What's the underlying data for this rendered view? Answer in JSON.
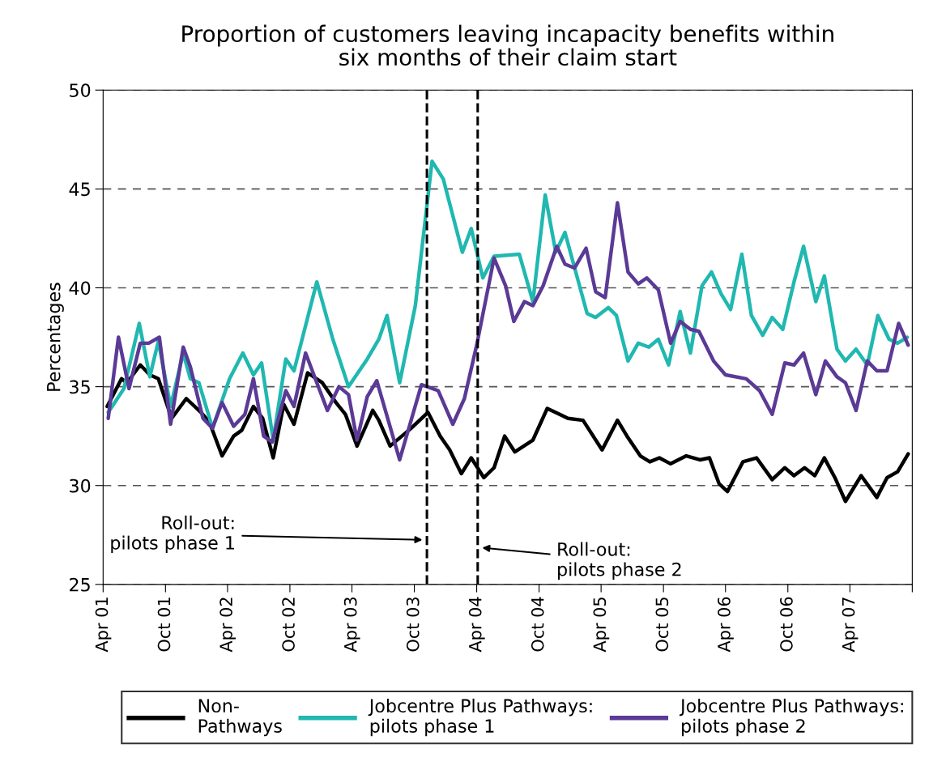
{
  "chart_data": {
    "type": "line",
    "title": "Proportion of customers leaving incapacity benefits within\nsix months of their claim start",
    "ylabel": "Percentages",
    "xlim": [
      "2001-04",
      "2007-10"
    ],
    "ylim": [
      25,
      50
    ],
    "xticks": [
      {
        "value": "2001-04",
        "label": "Apr 01"
      },
      {
        "value": "2001-10",
        "label": "Oct 01"
      },
      {
        "value": "2002-04",
        "label": "Apr 02"
      },
      {
        "value": "2002-10",
        "label": "Oct 02"
      },
      {
        "value": "2003-04",
        "label": "Apr 03"
      },
      {
        "value": "2003-10",
        "label": "Oct 03"
      },
      {
        "value": "2004-04",
        "label": "Apr 04"
      },
      {
        "value": "2004-10",
        "label": "Oct 04"
      },
      {
        "value": "2005-04",
        "label": "Apr 05"
      },
      {
        "value": "2005-10",
        "label": "Oct 05"
      },
      {
        "value": "2006-04",
        "label": "Apr 06"
      },
      {
        "value": "2006-10",
        "label": "Oct 06"
      },
      {
        "value": "2007-04",
        "label": "Apr 07"
      },
      {
        "value": "2007-10",
        "label": null
      }
    ],
    "yticks": [
      25,
      30,
      35,
      40,
      45,
      50
    ],
    "grid": "y",
    "legend": "bottom",
    "marker": "none",
    "line_style": "solid",
    "ref_lines": [
      {
        "axis": "x",
        "value": "2003-11-07",
        "label": "Roll-out:\npilots phase 1",
        "color": "#000000",
        "line_style": "dashed"
      },
      {
        "axis": "x",
        "value": "2004-04-04",
        "label": "Roll-out:\npilots phase 2",
        "color": "#000000",
        "line_style": "dashed"
      }
    ],
    "series": [
      {
        "name": "Non-\nPathways",
        "color": "#000000",
        "x": [
          "2001-04-13",
          "2001-05-25",
          "2001-06-10",
          "2001-07-19",
          "2001-08-16",
          "2001-09-10",
          "2001-10-19",
          "2001-12-01",
          "2002-01-13",
          "2002-02-07",
          "2002-03-16",
          "2002-04-19",
          "2002-05-13",
          "2002-06-16",
          "2002-07-13",
          "2002-08-13",
          "2002-09-13",
          "2002-10-13",
          "2002-11-22",
          "2003-01-04",
          "2003-02-13",
          "2003-03-13",
          "2003-04-16",
          "2003-06-01",
          "2003-06-19",
          "2003-07-22",
          "2003-09-22",
          "2003-11-10",
          "2003-12-16",
          "2004-01-13",
          "2004-02-16",
          "2004-03-16",
          "2004-04-22",
          "2004-05-22",
          "2004-06-22",
          "2004-07-22",
          "2004-09-13",
          "2004-10-25",
          "2004-12-25",
          "2005-02-07",
          "2005-04-04",
          "2005-05-19",
          "2005-06-16",
          "2005-07-25",
          "2005-08-22",
          "2005-09-19",
          "2005-10-22",
          "2005-12-07",
          "2006-01-16",
          "2006-02-13",
          "2006-03-13",
          "2006-04-07",
          "2006-05-22",
          "2006-07-01",
          "2006-08-16",
          "2006-09-22",
          "2006-10-19",
          "2006-11-19",
          "2006-12-19",
          "2007-01-16",
          "2007-02-16",
          "2007-03-19",
          "2007-05-04",
          "2007-06-19",
          "2007-07-19",
          "2007-08-19",
          "2007-09-19"
        ],
        "values": [
          34.0,
          35.4,
          35.2,
          36.1,
          35.6,
          35.4,
          33.4,
          34.4,
          33.7,
          33.2,
          31.5,
          32.5,
          32.8,
          34.0,
          33.4,
          31.4,
          34.1,
          33.1,
          35.7,
          35.2,
          34.2,
          33.6,
          32.0,
          33.8,
          33.3,
          32.0,
          32.9,
          33.7,
          32.5,
          31.8,
          30.6,
          31.4,
          30.4,
          30.9,
          32.5,
          31.7,
          32.3,
          33.9,
          33.4,
          33.3,
          31.8,
          33.3,
          32.5,
          31.5,
          31.2,
          31.4,
          31.1,
          31.5,
          31.3,
          31.4,
          30.1,
          29.7,
          31.2,
          31.4,
          30.3,
          30.9,
          30.5,
          30.9,
          30.5,
          31.4,
          30.4,
          29.2,
          30.5,
          29.4,
          30.4,
          30.7,
          31.6
        ]
      },
      {
        "name": "Jobcentre Plus Pathways:\npilots phase 1",
        "color": "#20b8b0",
        "x": [
          "2001-04-16",
          "2001-06-01",
          "2001-07-16",
          "2001-08-16",
          "2001-09-10",
          "2001-10-16",
          "2001-11-22",
          "2001-12-13",
          "2002-01-07",
          "2002-02-16",
          "2002-04-07",
          "2002-05-16",
          "2002-06-16",
          "2002-07-10",
          "2002-08-13",
          "2002-09-19",
          "2002-10-13",
          "2002-12-19",
          "2003-02-04",
          "2003-03-22",
          "2003-05-16",
          "2003-06-19",
          "2003-07-13",
          "2003-08-19",
          "2003-10-04",
          "2003-11-22",
          "2003-12-25",
          "2004-02-19",
          "2004-03-16",
          "2004-04-19",
          "2004-05-22",
          "2004-08-04",
          "2004-09-13",
          "2004-10-19",
          "2004-11-19",
          "2004-12-16",
          "2005-02-19",
          "2005-03-16",
          "2005-04-22",
          "2005-05-16",
          "2005-06-19",
          "2005-07-19",
          "2005-08-19",
          "2005-09-16",
          "2005-10-16",
          "2005-11-19",
          "2005-12-19",
          "2006-01-22",
          "2006-02-19",
          "2006-03-19",
          "2006-04-16",
          "2006-05-19",
          "2006-06-16",
          "2006-07-19",
          "2006-08-16",
          "2006-09-16",
          "2006-10-19",
          "2006-11-16",
          "2006-12-22",
          "2007-01-16",
          "2007-02-22",
          "2007-03-19",
          "2007-04-19",
          "2007-05-22",
          "2007-06-22",
          "2007-07-25",
          "2007-08-19",
          "2007-09-16"
        ],
        "values": [
          33.7,
          34.9,
          38.2,
          35.5,
          37.3,
          34.0,
          36.7,
          35.4,
          35.2,
          32.9,
          35.4,
          36.7,
          35.6,
          36.2,
          32.3,
          36.4,
          35.8,
          40.3,
          37.4,
          35.0,
          36.4,
          37.4,
          38.6,
          35.2,
          39.1,
          46.4,
          45.5,
          41.8,
          43.0,
          40.5,
          41.6,
          41.7,
          39.3,
          44.7,
          41.8,
          42.8,
          38.7,
          38.5,
          39.0,
          38.6,
          36.3,
          37.2,
          37.0,
          37.4,
          36.1,
          38.8,
          36.7,
          40.1,
          40.8,
          39.7,
          38.9,
          41.7,
          38.6,
          37.6,
          38.5,
          37.9,
          40.3,
          42.1,
          39.3,
          40.6,
          36.9,
          36.3,
          36.9,
          36.1,
          38.6,
          37.4,
          37.2,
          37.5
        ]
      },
      {
        "name": "Jobcentre Plus Pathways:\npilots phase 2",
        "color": "#5b3a96",
        "x": [
          "2001-04-16",
          "2001-05-16",
          "2001-06-16",
          "2001-07-19",
          "2001-08-13",
          "2001-09-13",
          "2001-10-16",
          "2001-11-22",
          "2001-12-13",
          "2002-01-19",
          "2002-02-16",
          "2002-03-16",
          "2002-04-19",
          "2002-05-22",
          "2002-06-16",
          "2002-07-16",
          "2002-08-10",
          "2002-09-19",
          "2002-10-13",
          "2002-11-16",
          "2002-12-19",
          "2003-01-19",
          "2003-02-22",
          "2003-03-22",
          "2003-04-16",
          "2003-05-16",
          "2003-06-13",
          "2003-08-19",
          "2003-10-22",
          "2003-12-10",
          "2004-01-22",
          "2004-02-25",
          "2004-04-01",
          "2004-05-22",
          "2004-06-25",
          "2004-07-19",
          "2004-08-19",
          "2004-09-13",
          "2004-10-13",
          "2004-11-22",
          "2004-12-16",
          "2005-01-13",
          "2005-02-16",
          "2005-03-16",
          "2005-04-13",
          "2005-05-19",
          "2005-06-19",
          "2005-07-19",
          "2005-08-13",
          "2005-09-16",
          "2005-10-22",
          "2005-11-19",
          "2005-12-19",
          "2006-01-13",
          "2006-02-25",
          "2006-04-01",
          "2006-06-01",
          "2006-07-10",
          "2006-08-16",
          "2006-09-22",
          "2006-10-19",
          "2006-11-16",
          "2006-12-22",
          "2007-01-19",
          "2007-02-22",
          "2007-03-19",
          "2007-04-19",
          "2007-05-22",
          "2007-06-19",
          "2007-07-19",
          "2007-08-22",
          "2007-09-19"
        ],
        "values": [
          33.4,
          37.5,
          34.9,
          37.2,
          37.2,
          37.5,
          33.1,
          37.0,
          36.0,
          33.4,
          32.9,
          34.2,
          33.0,
          33.6,
          35.4,
          32.5,
          32.2,
          34.8,
          34.0,
          36.7,
          35.2,
          33.8,
          35.0,
          34.6,
          32.3,
          34.5,
          35.3,
          31.3,
          35.1,
          34.8,
          33.1,
          34.4,
          37.1,
          41.5,
          40.1,
          38.3,
          39.3,
          39.1,
          40.1,
          42.1,
          41.2,
          41.0,
          42.0,
          39.8,
          39.5,
          44.3,
          40.8,
          40.2,
          40.5,
          39.9,
          37.2,
          38.3,
          37.9,
          37.8,
          36.3,
          35.6,
          35.4,
          34.8,
          33.6,
          36.2,
          36.1,
          36.7,
          34.6,
          36.3,
          35.5,
          35.2,
          33.8,
          36.3,
          35.8,
          35.8,
          38.2,
          37.1
        ]
      }
    ]
  }
}
